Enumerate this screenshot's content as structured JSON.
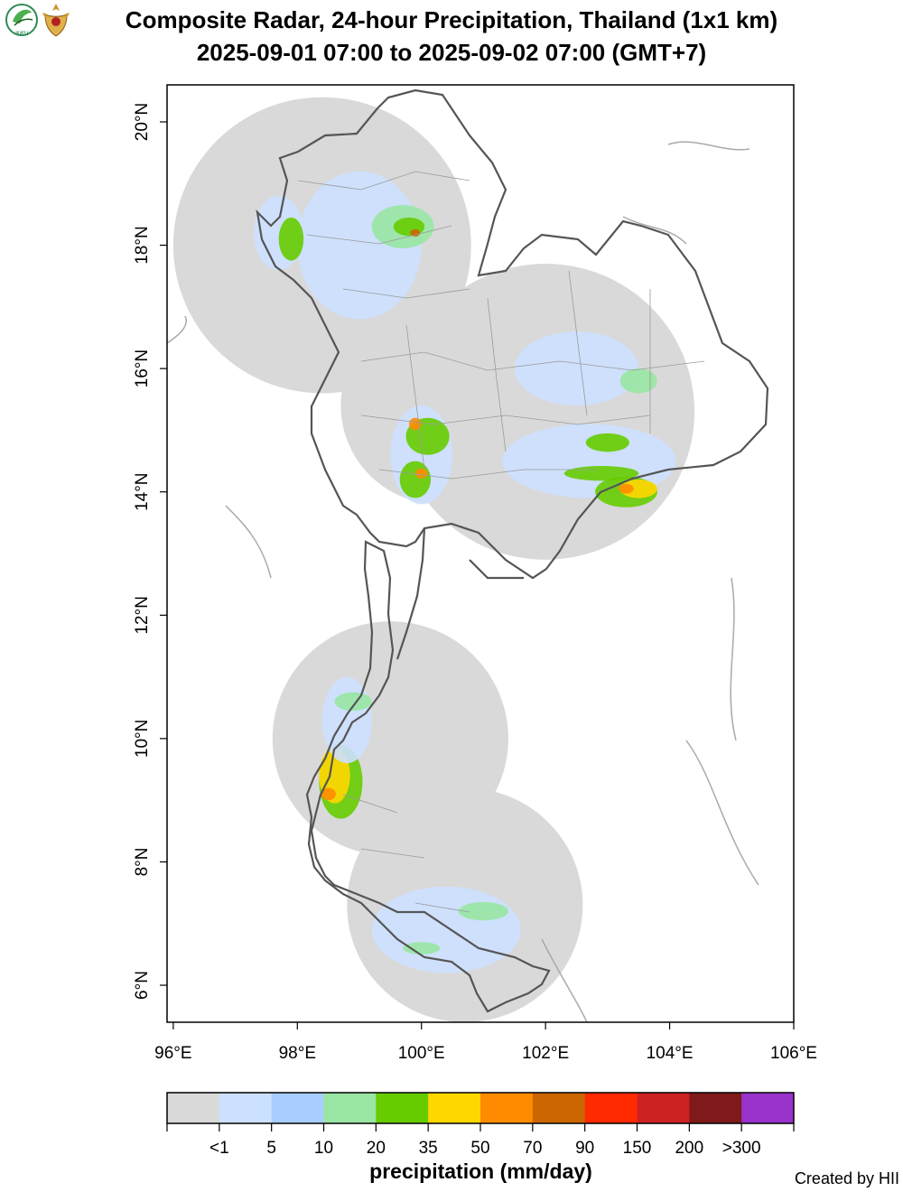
{
  "title": {
    "line1": "Composite Radar, 24-hour Precipitation, Thailand (1x1 km)",
    "line2": "2025-09-01 07:00 to 2025-09-02 07:00 (GMT+7)"
  },
  "logos": {
    "left_logo": {
      "icon": "leaf-circle-logo",
      "text": "สสน",
      "color": "#2e8b57"
    },
    "right_logo": {
      "icon": "royal-emblem-logo",
      "color": "#c8952e"
    }
  },
  "map": {
    "lon_range": [
      95.9,
      106.0
    ],
    "lat_range": [
      5.4,
      20.6
    ],
    "x_ticks": [
      {
        "value": 96,
        "label": "96°E"
      },
      {
        "value": 98,
        "label": "98°E"
      },
      {
        "value": 100,
        "label": "100°E"
      },
      {
        "value": 102,
        "label": "102°E"
      },
      {
        "value": 104,
        "label": "104°E"
      },
      {
        "value": 106,
        "label": "106°E"
      }
    ],
    "y_ticks": [
      {
        "value": 6,
        "label": "6°N"
      },
      {
        "value": 8,
        "label": "8°N"
      },
      {
        "value": 10,
        "label": "10°N"
      },
      {
        "value": 12,
        "label": "12°N"
      },
      {
        "value": 14,
        "label": "14°N"
      },
      {
        "value": 16,
        "label": "16°N"
      },
      {
        "value": 18,
        "label": "18°N"
      },
      {
        "value": 20,
        "label": "20°N"
      }
    ],
    "radar_coverage": [
      {
        "center": [
          98.4,
          18.0
        ],
        "radius_deg": 2.4
      },
      {
        "center": [
          102.0,
          15.3
        ],
        "radius_deg": 2.4
      },
      {
        "center": [
          100.3,
          15.4
        ],
        "radius_deg": 1.6
      },
      {
        "center": [
          99.5,
          10.0
        ],
        "radius_deg": 1.9
      },
      {
        "center": [
          100.7,
          7.3
        ],
        "radius_deg": 1.9
      }
    ],
    "rain_patches": [
      {
        "lon": 100.0,
        "lat": 14.6,
        "rx": 0.5,
        "ry": 0.8,
        "class": 0
      },
      {
        "lon": 100.1,
        "lat": 14.9,
        "rx": 0.35,
        "ry": 0.3,
        "class": 3
      },
      {
        "lon": 99.9,
        "lat": 14.2,
        "rx": 0.25,
        "ry": 0.3,
        "class": 3
      },
      {
        "lon": 99.9,
        "lat": 15.1,
        "rx": 0.1,
        "ry": 0.1,
        "class": 5
      },
      {
        "lon": 100.0,
        "lat": 14.3,
        "rx": 0.1,
        "ry": 0.08,
        "class": 5
      },
      {
        "lon": 102.7,
        "lat": 14.5,
        "rx": 1.4,
        "ry": 0.6,
        "class": 0
      },
      {
        "lon": 103.3,
        "lat": 14.0,
        "rx": 0.5,
        "ry": 0.25,
        "class": 3
      },
      {
        "lon": 103.5,
        "lat": 14.05,
        "rx": 0.3,
        "ry": 0.15,
        "class": 4
      },
      {
        "lon": 103.3,
        "lat": 14.05,
        "rx": 0.12,
        "ry": 0.08,
        "class": 5
      },
      {
        "lon": 102.9,
        "lat": 14.3,
        "rx": 0.6,
        "ry": 0.12,
        "class": 3
      },
      {
        "lon": 103.0,
        "lat": 14.8,
        "rx": 0.35,
        "ry": 0.15,
        "class": 3
      },
      {
        "lon": 98.7,
        "lat": 9.3,
        "rx": 0.35,
        "ry": 0.6,
        "class": 3
      },
      {
        "lon": 98.6,
        "lat": 9.4,
        "rx": 0.25,
        "ry": 0.45,
        "class": 4
      },
      {
        "lon": 98.5,
        "lat": 9.1,
        "rx": 0.12,
        "ry": 0.1,
        "class": 5
      },
      {
        "lon": 98.8,
        "lat": 10.3,
        "rx": 0.4,
        "ry": 0.7,
        "class": 0
      },
      {
        "lon": 98.9,
        "lat": 10.6,
        "rx": 0.3,
        "ry": 0.15,
        "class": 2
      },
      {
        "lon": 100.4,
        "lat": 6.9,
        "rx": 1.2,
        "ry": 0.7,
        "class": 0
      },
      {
        "lon": 100.0,
        "lat": 6.6,
        "rx": 0.3,
        "ry": 0.1,
        "class": 2
      },
      {
        "lon": 101.0,
        "lat": 7.2,
        "rx": 0.4,
        "ry": 0.15,
        "class": 2
      },
      {
        "lon": 99.0,
        "lat": 18.0,
        "rx": 1.0,
        "ry": 1.2,
        "class": 0
      },
      {
        "lon": 97.7,
        "lat": 18.2,
        "rx": 0.4,
        "ry": 0.6,
        "class": 0
      },
      {
        "lon": 97.9,
        "lat": 18.1,
        "rx": 0.2,
        "ry": 0.35,
        "class": 3
      },
      {
        "lon": 99.7,
        "lat": 18.3,
        "rx": 0.5,
        "ry": 0.35,
        "class": 2
      },
      {
        "lon": 99.8,
        "lat": 18.3,
        "rx": 0.25,
        "ry": 0.15,
        "class": 3
      },
      {
        "lon": 99.9,
        "lat": 18.2,
        "rx": 0.08,
        "ry": 0.06,
        "class": 6
      },
      {
        "lon": 102.5,
        "lat": 16.0,
        "rx": 1.0,
        "ry": 0.6,
        "class": 0
      },
      {
        "lon": 103.5,
        "lat": 15.8,
        "rx": 0.3,
        "ry": 0.2,
        "class": 2
      }
    ]
  },
  "legend": {
    "colors": [
      "#d9d9d9",
      "#cce0ff",
      "#aacdff",
      "#99e5a3",
      "#66cc00",
      "#ffd700",
      "#ff8c00",
      "#cc6600",
      "#ff2a00",
      "#cc2222",
      "#801a1a",
      "#9933cc"
    ],
    "labels": [
      "<1",
      "5",
      "10",
      "20",
      "35",
      "50",
      "70",
      "90",
      "150",
      "200",
      ">300"
    ],
    "title": "precipitation (mm/day)"
  },
  "credit": "Created by HII"
}
